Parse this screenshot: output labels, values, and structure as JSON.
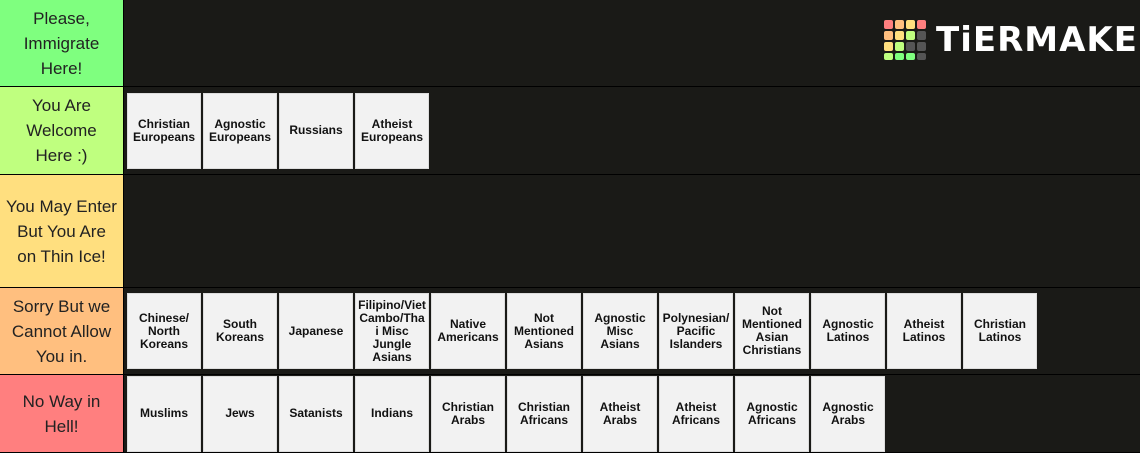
{
  "logo": "TiERMAKER",
  "tiers": [
    {
      "label": "Please, Immigrate Here!",
      "color": "#7fff7f",
      "items": []
    },
    {
      "label": "You Are Welcome Here :)",
      "color": "#bfff7f",
      "items": [
        "Christian Europeans",
        "Agnostic Europeans",
        "Russians",
        "Atheist Europeans"
      ]
    },
    {
      "label": "You May Enter But You Are on Thin Ice!",
      "color": "#ffdf7f",
      "items": []
    },
    {
      "label": "Sorry But we Cannot Allow You in.",
      "color": "#ffbf7f",
      "items": [
        "Chinese/ North Koreans",
        "South Koreans",
        "Japanese",
        "Filipino/Viet Cambo/Thai Misc Jungle Asians",
        "Native Americans",
        "Not Mentioned Asians",
        "Agnostic Misc Asians",
        "Polynesian/ Pacific Islanders",
        "Not Mentioned Asian Christians",
        "Agnostic Latinos",
        "Atheist Latinos",
        "Christian Latinos"
      ]
    },
    {
      "label": "No Way in Hell!",
      "color": "#ff7f7f",
      "items": [
        "Muslims",
        "Jews",
        "Satanists",
        "Indians",
        "Christian Arabs",
        "Christian Africans",
        "Atheist Arabs",
        "Atheist Africans",
        "Agnostic Africans",
        "Agnostic Arabs"
      ]
    }
  ]
}
